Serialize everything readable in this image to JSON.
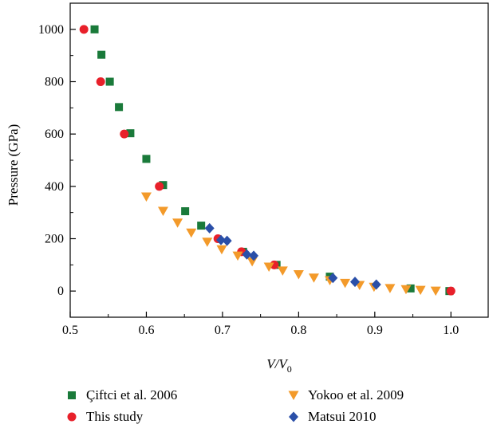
{
  "chart_data": {
    "type": "scatter",
    "xlabel": "V/V0",
    "ylabel": "Pressure (GPa)",
    "xlim": [
      0.5,
      1.05
    ],
    "ylim": [
      -100,
      1100
    ],
    "xticks": [
      "0.5",
      "0.6",
      "0.7",
      "0.8",
      "0.9",
      "1.0"
    ],
    "yticks": [
      "0",
      "200",
      "400",
      "600",
      "800",
      "1000"
    ],
    "grid": false,
    "legend_position": "bottom",
    "series": [
      {
        "name": "Çiftci et al. 2006",
        "marker": "square",
        "color": "#1a7a3a",
        "points": [
          [
            0.532,
            1000
          ],
          [
            0.541,
            903
          ],
          [
            0.552,
            800
          ],
          [
            0.564,
            703
          ],
          [
            0.579,
            603
          ],
          [
            0.6,
            505
          ],
          [
            0.622,
            405
          ],
          [
            0.651,
            305
          ],
          [
            0.672,
            250
          ],
          [
            0.727,
            150
          ],
          [
            0.771,
            100
          ],
          [
            0.841,
            55
          ],
          [
            0.947,
            10
          ],
          [
            0.998,
            0
          ]
        ]
      },
      {
        "name": "This study",
        "marker": "circle",
        "color": "#e8202a",
        "points": [
          [
            0.518,
            1000
          ],
          [
            0.54,
            800
          ],
          [
            0.571,
            600
          ],
          [
            0.617,
            400
          ],
          [
            0.694,
            200
          ],
          [
            0.725,
            150
          ],
          [
            0.768,
            100
          ],
          [
            1.0,
            0
          ]
        ]
      },
      {
        "name": "Yokoo et al. 2009",
        "marker": "triangle-down",
        "color": "#f39a2a",
        "points": [
          [
            0.6,
            360
          ],
          [
            0.622,
            305
          ],
          [
            0.641,
            260
          ],
          [
            0.659,
            222
          ],
          [
            0.68,
            187
          ],
          [
            0.699,
            158
          ],
          [
            0.72,
            134
          ],
          [
            0.739,
            112
          ],
          [
            0.761,
            92
          ],
          [
            0.779,
            77
          ],
          [
            0.8,
            63
          ],
          [
            0.82,
            50
          ],
          [
            0.841,
            40
          ],
          [
            0.861,
            30
          ],
          [
            0.88,
            22
          ],
          [
            0.899,
            15
          ],
          [
            0.92,
            10
          ],
          [
            0.941,
            6
          ],
          [
            0.96,
            3
          ],
          [
            0.98,
            0
          ]
        ]
      },
      {
        "name": "Matsui 2010",
        "marker": "diamond",
        "color": "#2a4fa8",
        "points": [
          [
            0.683,
            240
          ],
          [
            0.698,
            195
          ],
          [
            0.706,
            192
          ],
          [
            0.732,
            140
          ],
          [
            0.741,
            135
          ],
          [
            0.845,
            50
          ],
          [
            0.874,
            35
          ],
          [
            0.902,
            25
          ]
        ]
      }
    ]
  }
}
